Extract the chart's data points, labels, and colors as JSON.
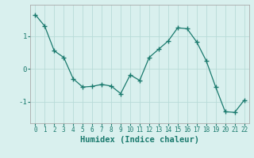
{
  "x": [
    0,
    1,
    2,
    3,
    4,
    5,
    6,
    7,
    8,
    9,
    10,
    11,
    12,
    13,
    14,
    15,
    16,
    17,
    18,
    19,
    20,
    21,
    22
  ],
  "y": [
    1.65,
    1.3,
    0.55,
    0.35,
    -0.3,
    -0.55,
    -0.53,
    -0.47,
    -0.52,
    -0.75,
    -0.18,
    -0.35,
    0.35,
    0.6,
    0.85,
    1.25,
    1.22,
    0.82,
    0.25,
    -0.55,
    -1.3,
    -1.32,
    -0.95
  ],
  "line_color": "#1a7a6e",
  "marker": "+",
  "marker_size": 4,
  "xlabel": "Humidex (Indice chaleur)",
  "xlabel_fontsize": 7.5,
  "background_color": "#d9f0ee",
  "grid_color": "#b8dbd8",
  "axis_color": "#aaaaaa",
  "tick_color": "#1a7a6e",
  "yticks": [
    -1,
    0,
    1
  ],
  "xticks": [
    0,
    1,
    2,
    3,
    4,
    5,
    6,
    7,
    8,
    9,
    10,
    11,
    12,
    13,
    14,
    15,
    16,
    17,
    18,
    19,
    20,
    21,
    22
  ],
  "xlim": [
    -0.5,
    22.5
  ],
  "ylim": [
    -1.65,
    1.95
  ]
}
